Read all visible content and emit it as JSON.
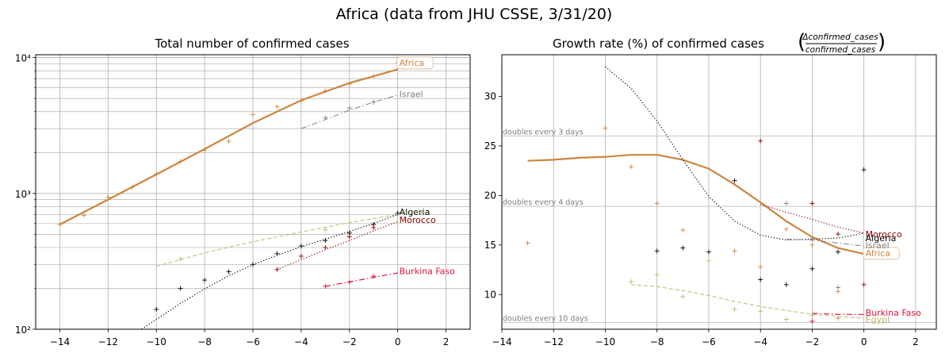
{
  "figure": {
    "suptitle": "Africa (data from JHU CSSE, 3/31/20)"
  },
  "chart_data": [
    {
      "type": "line",
      "title": "Total number of confirmed cases",
      "yscale": "log",
      "xlim": [
        -15,
        3
      ],
      "ylim": [
        100,
        10500
      ],
      "xticks": [
        -14,
        -12,
        -10,
        -8,
        -6,
        -4,
        -2,
        0,
        2
      ],
      "xtick_labels": [
        "−14",
        "−12",
        "−10",
        "−8",
        "−6",
        "−4",
        "−2",
        "0",
        "2"
      ],
      "yticks_major": [
        100,
        1000,
        10000
      ],
      "ytick_labels": [
        "10²",
        "10³",
        "10⁴"
      ],
      "series": [
        {
          "name": "Africa",
          "color": "#cd853f",
          "style": "solid",
          "width": 2.2,
          "label_box": true,
          "fit_x": [
            -14,
            -12,
            -10,
            -8,
            -6,
            -4,
            -2,
            0
          ],
          "fit_y": [
            590,
            900,
            1380,
            2120,
            3300,
            4850,
            6500,
            8200
          ],
          "points_x": [
            -14,
            -13,
            -12,
            -11,
            -10,
            -9,
            -8,
            -7,
            -6,
            -5,
            -4,
            -3,
            -2,
            -1,
            0
          ],
          "points_y": [
            590,
            690,
            940,
            1110,
            1390,
            1720,
            2080,
            2420,
            3800,
            4350,
            4800,
            5700,
            6400,
            7300,
            9200
          ],
          "label_xy": [
            0,
            9200
          ]
        },
        {
          "name": "Israel",
          "color": "#808080",
          "style": "dashdot",
          "width": 1.0,
          "fit_x": [
            -4,
            -3,
            -2,
            -1,
            0
          ],
          "fit_y": [
            3000,
            3500,
            4100,
            4700,
            5300
          ],
          "points_x": [
            -3,
            -2,
            -1
          ],
          "points_y": [
            3600,
            4250,
            4700
          ],
          "label_xy": [
            0,
            5400
          ]
        },
        {
          "name": "Algeria",
          "color": "#000000",
          "style": "dotted",
          "width": 1.2,
          "fit_x": [
            -11,
            -10,
            -9,
            -8,
            -7,
            -6,
            -5,
            -4,
            -3,
            -2,
            -1,
            0
          ],
          "fit_y": [
            90,
            118,
            155,
            198,
            248,
            298,
            350,
            405,
            460,
            525,
            600,
            700
          ],
          "points_x": [
            -10,
            -9,
            -8,
            -7,
            -6,
            -5,
            -4,
            -3,
            -2,
            -1,
            0
          ],
          "points_y": [
            140,
            200,
            230,
            265,
            300,
            360,
            410,
            450,
            510,
            590,
            716
          ],
          "label_xy": [
            0,
            730
          ]
        },
        {
          "name": "Egypt",
          "color": "#bdb76b",
          "style": "dashed",
          "width": 1.0,
          "fit_x": [
            -10,
            -8,
            -6,
            -4,
            -2,
            0,
            1
          ],
          "fit_y": [
            290,
            365,
            440,
            520,
            610,
            700,
            750
          ],
          "points_x": [
            -9,
            -3,
            1
          ],
          "points_y": [
            330,
            540,
            720
          ],
          "label_xy": null
        },
        {
          "name": "Morocco",
          "color": "#8b0000",
          "style": "dotted",
          "width": 1.2,
          "fit_x": [
            -5,
            -4,
            -3,
            -2,
            -1,
            0
          ],
          "fit_y": [
            275,
            325,
            385,
            450,
            530,
            620
          ],
          "points_x": [
            -5,
            -4,
            -3,
            -2,
            -1
          ],
          "points_y": [
            275,
            345,
            400,
            480,
            560
          ],
          "label_xy": [
            0,
            640
          ]
        },
        {
          "name": "Burkina Faso",
          "color": "#dc143c",
          "style": "dashdot",
          "width": 1.2,
          "fit_x": [
            -3,
            -2,
            -1,
            0
          ],
          "fit_y": [
            207,
            223,
            241,
            260
          ],
          "points_x": [
            -3,
            -2,
            -1
          ],
          "points_y": [
            207,
            222,
            246
          ],
          "label_xy": [
            0,
            268
          ]
        }
      ]
    },
    {
      "type": "line",
      "title": "Growth rate (%) of confirmed cases",
      "title_fraction_numerator": "Δconfirmed_cases",
      "title_fraction_denominator": "confirmed_cases",
      "xlim": [
        -14,
        2.8
      ],
      "ylim": [
        6.5,
        34.2
      ],
      "xticks": [
        -14,
        -12,
        -10,
        -8,
        -6,
        -4,
        -2,
        0,
        2
      ],
      "xtick_labels": [
        "−14",
        "−12",
        "−10",
        "−8",
        "−6",
        "−4",
        "−2",
        "0",
        "2"
      ],
      "yticks": [
        10,
        15,
        20,
        25,
        30
      ],
      "ytick_labels": [
        "10",
        "15",
        "20",
        "25",
        "30"
      ],
      "reference_lines": [
        {
          "y": 26.0,
          "label": "doubles every 3 days"
        },
        {
          "y": 18.9,
          "label": "doubles every 4 days"
        },
        {
          "y": 7.18,
          "label": "doubles every 10 days"
        }
      ],
      "series": [
        {
          "name": "Africa",
          "color": "#cd853f",
          "style": "solid",
          "width": 2.2,
          "label_box": true,
          "fit_x": [
            -13,
            -12,
            -11,
            -10,
            -9,
            -8,
            -7,
            -6,
            -5,
            -4,
            -3,
            -2,
            -1,
            0
          ],
          "fit_y": [
            23.5,
            23.6,
            23.8,
            23.9,
            24.1,
            24.1,
            23.6,
            22.7,
            21.1,
            19.3,
            17.4,
            15.8,
            14.7,
            14.1
          ],
          "points_x": [
            -13,
            -10,
            -9,
            -8,
            -7,
            -5,
            -4,
            -3,
            -2,
            -1
          ],
          "points_y": [
            15.2,
            26.8,
            22.9,
            19.2,
            16.5,
            14.4,
            12.8,
            16.6,
            15.0,
            10.3
          ],
          "label_xy": [
            0,
            14.2
          ]
        },
        {
          "name": "Algeria",
          "color": "#000000",
          "style": "dotted",
          "width": 1.2,
          "fit_x": [
            -10,
            -9,
            -8,
            -7,
            -6,
            -5,
            -4,
            -3,
            -2,
            -1,
            0
          ],
          "fit_y": [
            33.0,
            30.8,
            27.5,
            23.6,
            19.9,
            17.4,
            16.0,
            15.5,
            15.6,
            15.7,
            16.2
          ],
          "points_x": [
            -8,
            -7,
            -6,
            -5,
            -4,
            -3,
            -2,
            -1,
            0
          ],
          "points_y": [
            14.4,
            14.7,
            14.3,
            21.5,
            11.5,
            11.0,
            12.6,
            14.3,
            22.6
          ],
          "label_xy": [
            0,
            15.7
          ]
        },
        {
          "name": "Morocco",
          "color": "#8b0000",
          "style": "dotted",
          "width": 1.2,
          "fit_x": [
            -4,
            -3,
            -2,
            -1,
            0
          ],
          "fit_y": [
            19.1,
            18.3,
            17.6,
            16.8,
            16.2
          ],
          "points_x": [
            -4,
            -2,
            -1,
            0
          ],
          "points_y": [
            25.5,
            19.2,
            16.1,
            11.0
          ],
          "label_xy": [
            0,
            16.1
          ]
        },
        {
          "name": "Israel",
          "color": "#808080",
          "style": "dashdot",
          "width": 1.0,
          "fit_x": [
            -3,
            -2,
            -1,
            0
          ],
          "fit_y": [
            15.6,
            15.5,
            15.2,
            14.9
          ],
          "points_x": [
            -3,
            -2,
            -1
          ],
          "points_y": [
            19.2,
            15.6,
            10.7
          ],
          "label_xy": [
            0,
            15.0
          ]
        },
        {
          "name": "Burkina Faso",
          "color": "#dc143c",
          "style": "dashdot",
          "width": 1.2,
          "fit_x": [
            -2,
            -1,
            0
          ],
          "fit_y": [
            8.1,
            8.0,
            8.0
          ],
          "points_x": [
            -2,
            -1
          ],
          "points_y": [
            7.3,
            7.6
          ],
          "label_xy": [
            0,
            8.2
          ]
        },
        {
          "name": "Egypt",
          "color": "#bdb76b",
          "style": "dashed",
          "width": 1.0,
          "fit_x": [
            -9,
            -8,
            -7,
            -6,
            -5,
            -4,
            -3,
            -2,
            -1,
            0
          ],
          "fit_y": [
            11.0,
            10.8,
            10.4,
            9.9,
            9.3,
            8.8,
            8.4,
            8.0,
            7.8,
            7.6
          ],
          "points_x": [
            -9,
            -8,
            -7,
            -6,
            -5,
            -4,
            -3,
            -2,
            -1
          ],
          "points_y": [
            11.3,
            12.0,
            9.8,
            13.4,
            8.5,
            8.3,
            7.5,
            7.9,
            7.6
          ],
          "label_xy": [
            0,
            7.5
          ]
        }
      ]
    }
  ]
}
